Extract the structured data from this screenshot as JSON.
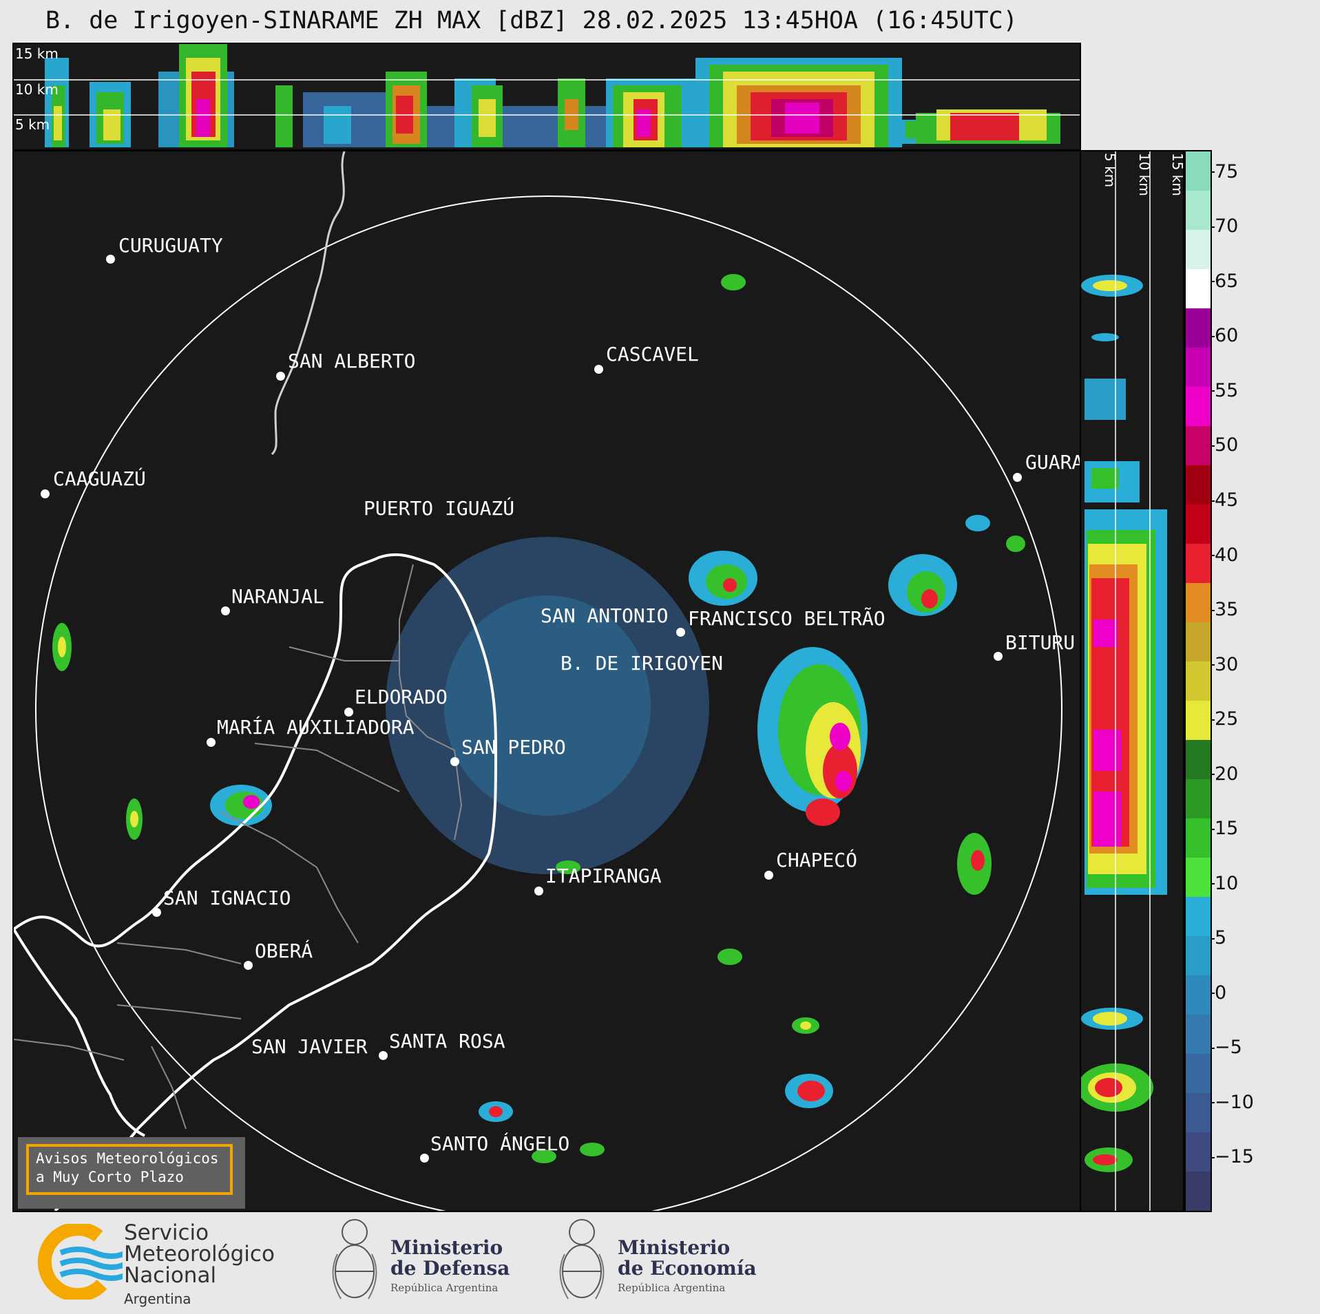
{
  "title": "B. de Irigoyen-SINARAME ZH MAX [dBZ] 28.02.2025 13:45HOA (16:45UTC)",
  "cross_section_top": {
    "height_labels": [
      "15 km",
      "10 km",
      "5 km"
    ]
  },
  "cross_section_side": {
    "height_labels": [
      "5 km",
      "10 km",
      "15 km"
    ]
  },
  "colorbar": {
    "ticks": [
      "75",
      "70",
      "65",
      "60",
      "55",
      "50",
      "45",
      "40",
      "35",
      "30",
      "25",
      "20",
      "15",
      "10",
      "5",
      "0",
      "−5",
      "−10",
      "−15"
    ],
    "range_dbz": [
      -20,
      77
    ],
    "colors": {
      "c0": "#3a3c68",
      "c1": "#3f4a80",
      "c2": "#3b5a92",
      "c3": "#386aa0",
      "c4": "#347aae",
      "c5": "#2f8abc",
      "c6": "#2a9cc8",
      "c7": "#2aaed8",
      "c8": "#4ee23c",
      "c9": "#36c02c",
      "c10": "#2a9a24",
      "c11": "#247a20",
      "c12": "#e8e83a",
      "c13": "#d4c830",
      "c14": "#c8a82a",
      "c15": "#e08c20",
      "c16": "#e82030",
      "c17": "#c40018",
      "c18": "#a00010",
      "c19": "#c8006a",
      "c20": "#ee00c8",
      "c21": "#c800b4",
      "c22": "#9a0098",
      "c23": "#ffffff",
      "c24": "#d8f4e8",
      "c25": "#a8e8cc",
      "c26": "#88dcbc"
    }
  },
  "cities": [
    {
      "name": "CURUGUATY"
    },
    {
      "name": "SAN ALBERTO"
    },
    {
      "name": "CASCAVEL"
    },
    {
      "name": "CAAGUAZÚ"
    },
    {
      "name": "GUARA"
    },
    {
      "name": "PUERTO IGUAZÚ"
    },
    {
      "name": "NARANJAL"
    },
    {
      "name": "SAN ANTONIO"
    },
    {
      "name": "FRANCISCO BELTRÃO"
    },
    {
      "name": "BITURU"
    },
    {
      "name": "B. DE IRIGOYEN"
    },
    {
      "name": "ELDORADO"
    },
    {
      "name": "MARÍA AUXILIADORA"
    },
    {
      "name": "SAN PEDRO"
    },
    {
      "name": "CHAPECÓ"
    },
    {
      "name": "ITAPIRANGA"
    },
    {
      "name": "SAN IGNACIO"
    },
    {
      "name": "OBERÁ"
    },
    {
      "name": "SAN JAVIER"
    },
    {
      "name": "SANTA ROSA"
    },
    {
      "name": "SANTO ÁNGELO"
    }
  ],
  "avisos": {
    "line1": "Avisos Meteorológicos",
    "line2": "a Muy Corto Plazo"
  },
  "logos": {
    "smn": {
      "line1": "Servicio",
      "line2": "Meteorológico",
      "line3": "Nacional",
      "line4": "Argentina"
    },
    "defensa": {
      "line1": "Ministerio",
      "line2": "de Defensa",
      "line3": "República Argentina"
    },
    "economia": {
      "line1": "Ministerio",
      "line2": "de Economía",
      "line3": "República Argentina"
    }
  }
}
